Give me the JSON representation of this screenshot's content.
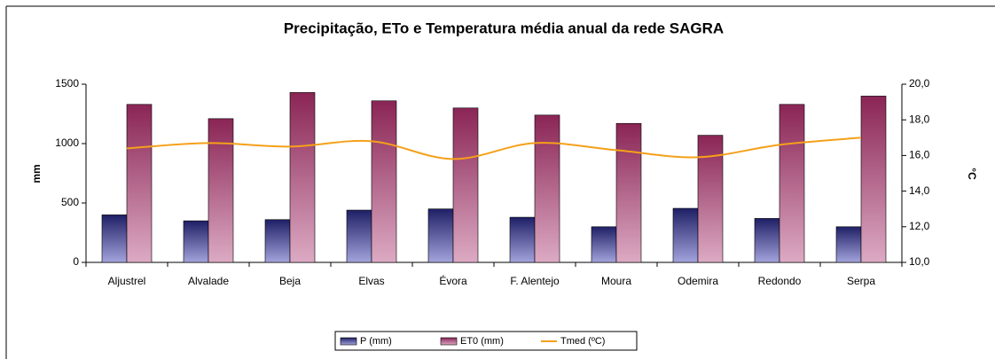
{
  "chart_data": {
    "type": "bar-line",
    "title": "Precipitação, ETo e Temperatura média anual da rede SAGRA",
    "y_label": "mm",
    "y2_label": "°C",
    "categories": [
      "Aljustrel",
      "Alvalade",
      "Beja",
      "Elvas",
      "Évora",
      "F. Alentejo",
      "Moura",
      "Odemira",
      "Redondo",
      "Serpa"
    ],
    "series": [
      {
        "name": "P (mm)",
        "type": "bar",
        "color": "#2e2e86",
        "values": [
          400,
          350,
          360,
          440,
          450,
          380,
          300,
          455,
          370,
          300
        ]
      },
      {
        "name": "ET0 (mm)",
        "type": "bar",
        "color": "#9b3366",
        "values": [
          1330,
          1210,
          1430,
          1360,
          1300,
          1240,
          1170,
          1070,
          1330,
          1400
        ]
      },
      {
        "name": "Tmed (ºC)",
        "type": "line",
        "axis": "y2",
        "color": "#f5a01a",
        "values": [
          16.4,
          16.7,
          16.5,
          16.8,
          15.8,
          16.7,
          16.3,
          15.9,
          16.6,
          17.0
        ]
      }
    ],
    "ylim": [
      0,
      1500
    ],
    "yticks": [
      0,
      500,
      1000,
      1500
    ],
    "y2lim": [
      10,
      20
    ],
    "y2ticks": [
      {
        "value": 10,
        "label": "10,0"
      },
      {
        "value": 12,
        "label": "12,0"
      },
      {
        "value": 14,
        "label": "14,0"
      },
      {
        "value": 16,
        "label": "16,0"
      },
      {
        "value": 18,
        "label": "18,0"
      },
      {
        "value": 20,
        "label": "20,0"
      }
    ],
    "legend": "bottom",
    "grid": false
  }
}
